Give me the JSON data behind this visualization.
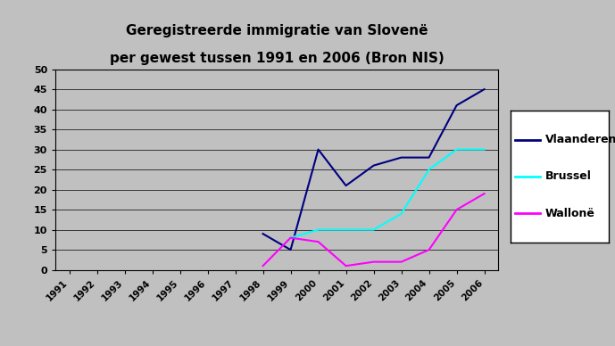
{
  "title_line1": "Geregistreerde immigratie van Slovenë",
  "title_line2": "per gewest tussen 1991 en 2006 (Bron NIS)",
  "years": [
    1991,
    1992,
    1993,
    1994,
    1995,
    1996,
    1997,
    1998,
    1999,
    2000,
    2001,
    2002,
    2003,
    2004,
    2005,
    2006
  ],
  "vlaanderen": [
    null,
    null,
    null,
    null,
    null,
    null,
    null,
    9,
    5,
    30,
    21,
    26,
    28,
    28,
    41,
    45
  ],
  "brussel": [
    null,
    null,
    null,
    null,
    null,
    null,
    null,
    null,
    8,
    10,
    10,
    10,
    14,
    25,
    30,
    30
  ],
  "wallonie": [
    null,
    null,
    null,
    null,
    null,
    null,
    null,
    1,
    8,
    7,
    1,
    2,
    2,
    5,
    15,
    19
  ],
  "color_vlaanderen": "#000080",
  "color_brussel": "#00FFFF",
  "color_wallonie": "#FF00FF",
  "background_plot": "#C0C0C0",
  "background_fig": "#C0C0C0",
  "ylim": [
    0,
    50
  ],
  "yticks": [
    0,
    5,
    10,
    15,
    20,
    25,
    30,
    35,
    40,
    45,
    50
  ],
  "legend_labels": [
    "Vlaanderen",
    "Brussel",
    "Wallonë"
  ],
  "title_fontsize": 11
}
